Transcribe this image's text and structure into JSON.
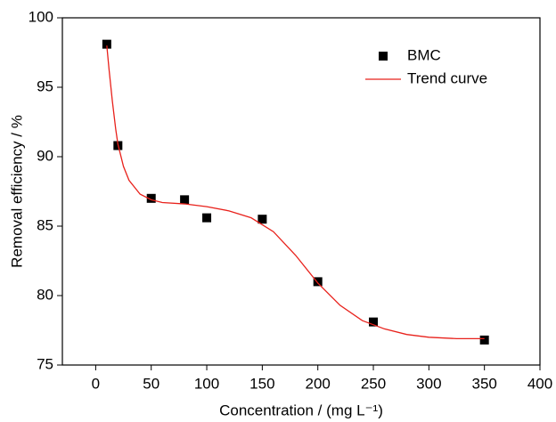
{
  "chart_data": {
    "type": "scatter",
    "xlabel": "Concentration / (mg L⁻¹)",
    "ylabel": "Removal efficiency / %",
    "xlim": [
      -30,
      400
    ],
    "xticks": [
      0,
      50,
      100,
      150,
      200,
      250,
      300,
      350,
      400
    ],
    "ylim": [
      75,
      100
    ],
    "yticks": [
      75,
      80,
      85,
      90,
      95,
      100
    ],
    "legend": "upper right",
    "series": [
      {
        "name": "BMC",
        "type": "scatter",
        "color": "#000000",
        "x": [
          10,
          20,
          50,
          80,
          100,
          150,
          200,
          250,
          350
        ],
        "values": [
          98.1,
          90.8,
          87.0,
          86.9,
          85.6,
          85.5,
          81.0,
          78.1,
          76.8
        ]
      },
      {
        "name": "Trend curve",
        "type": "line",
        "color": "#e8211b",
        "x": [
          10,
          12,
          15,
          18,
          20,
          25,
          30,
          40,
          50,
          60,
          80,
          100,
          120,
          140,
          160,
          180,
          200,
          220,
          240,
          260,
          280,
          300,
          325,
          350
        ],
        "values": [
          98.0,
          96.3,
          94.0,
          92.0,
          90.9,
          89.3,
          88.3,
          87.3,
          86.9,
          86.7,
          86.6,
          86.4,
          86.1,
          85.6,
          84.6,
          82.9,
          80.9,
          79.3,
          78.2,
          77.6,
          77.2,
          77.0,
          76.9,
          76.9
        ]
      }
    ]
  }
}
